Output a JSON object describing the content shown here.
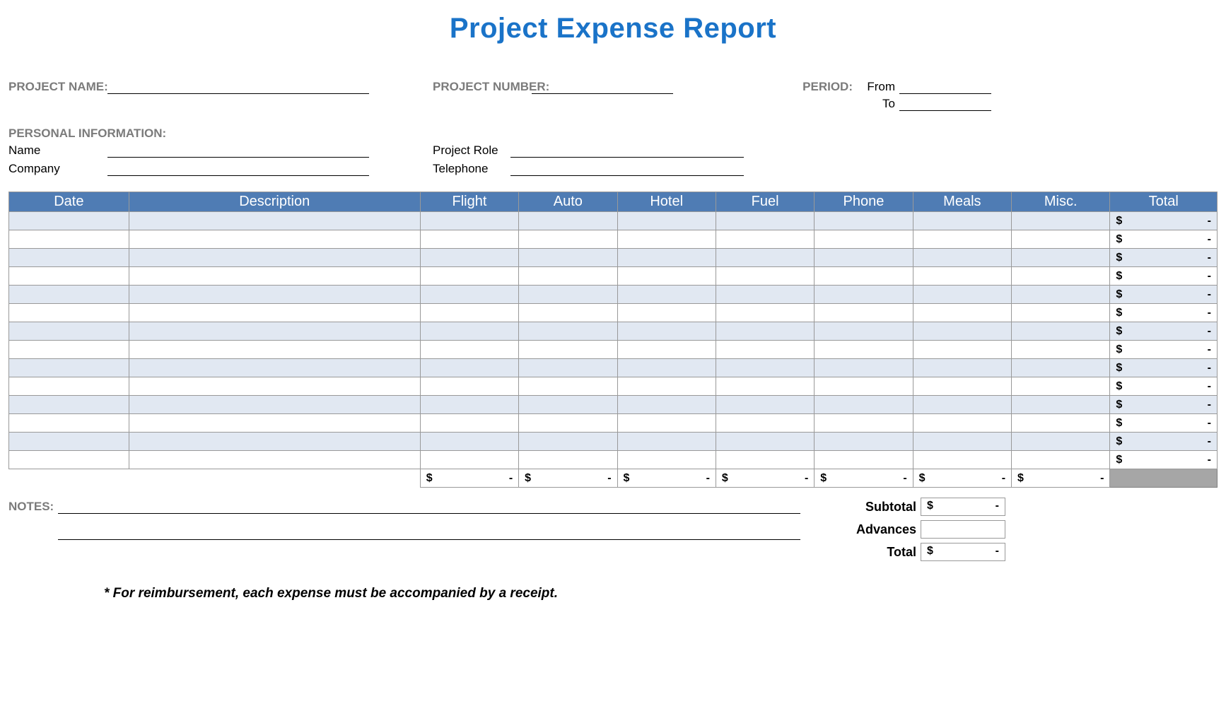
{
  "title": "Project Expense Report",
  "header": {
    "project_name_lbl": "PROJECT NAME:",
    "project_number_lbl": "PROJECT NUMBER:",
    "period_lbl": "PERIOD:",
    "from_lbl": "From",
    "to_lbl": "To"
  },
  "personal": {
    "section_lbl": "PERSONAL INFORMATION:",
    "name_lbl": "Name",
    "company_lbl": "Company",
    "role_lbl": "Project Role",
    "phone_lbl": "Telephone"
  },
  "table": {
    "columns": [
      "Date",
      "Description",
      "Flight",
      "Auto",
      "Hotel",
      "Fuel",
      "Phone",
      "Meals",
      "Misc.",
      "Total"
    ],
    "col_widths": [
      "140px",
      "340px",
      "115px",
      "115px",
      "115px",
      "115px",
      "115px",
      "115px",
      "115px",
      "125px"
    ],
    "num_rows": 14,
    "row_alt_color": "#e1e8f2",
    "row_white_color": "#ffffff",
    "header_bg": "#4f7cb4",
    "header_fg": "#ffffff",
    "border_color": "#999999",
    "currency_symbol": "$",
    "empty_value": "-",
    "colsum_grand_bg": "#a6a6a6"
  },
  "summary": {
    "subtotal_lbl": "Subtotal",
    "advances_lbl": "Advances",
    "total_lbl": "Total",
    "notes_lbl": "NOTES:"
  },
  "footnote": "* For reimbursement, each expense must be accompanied by a receipt."
}
